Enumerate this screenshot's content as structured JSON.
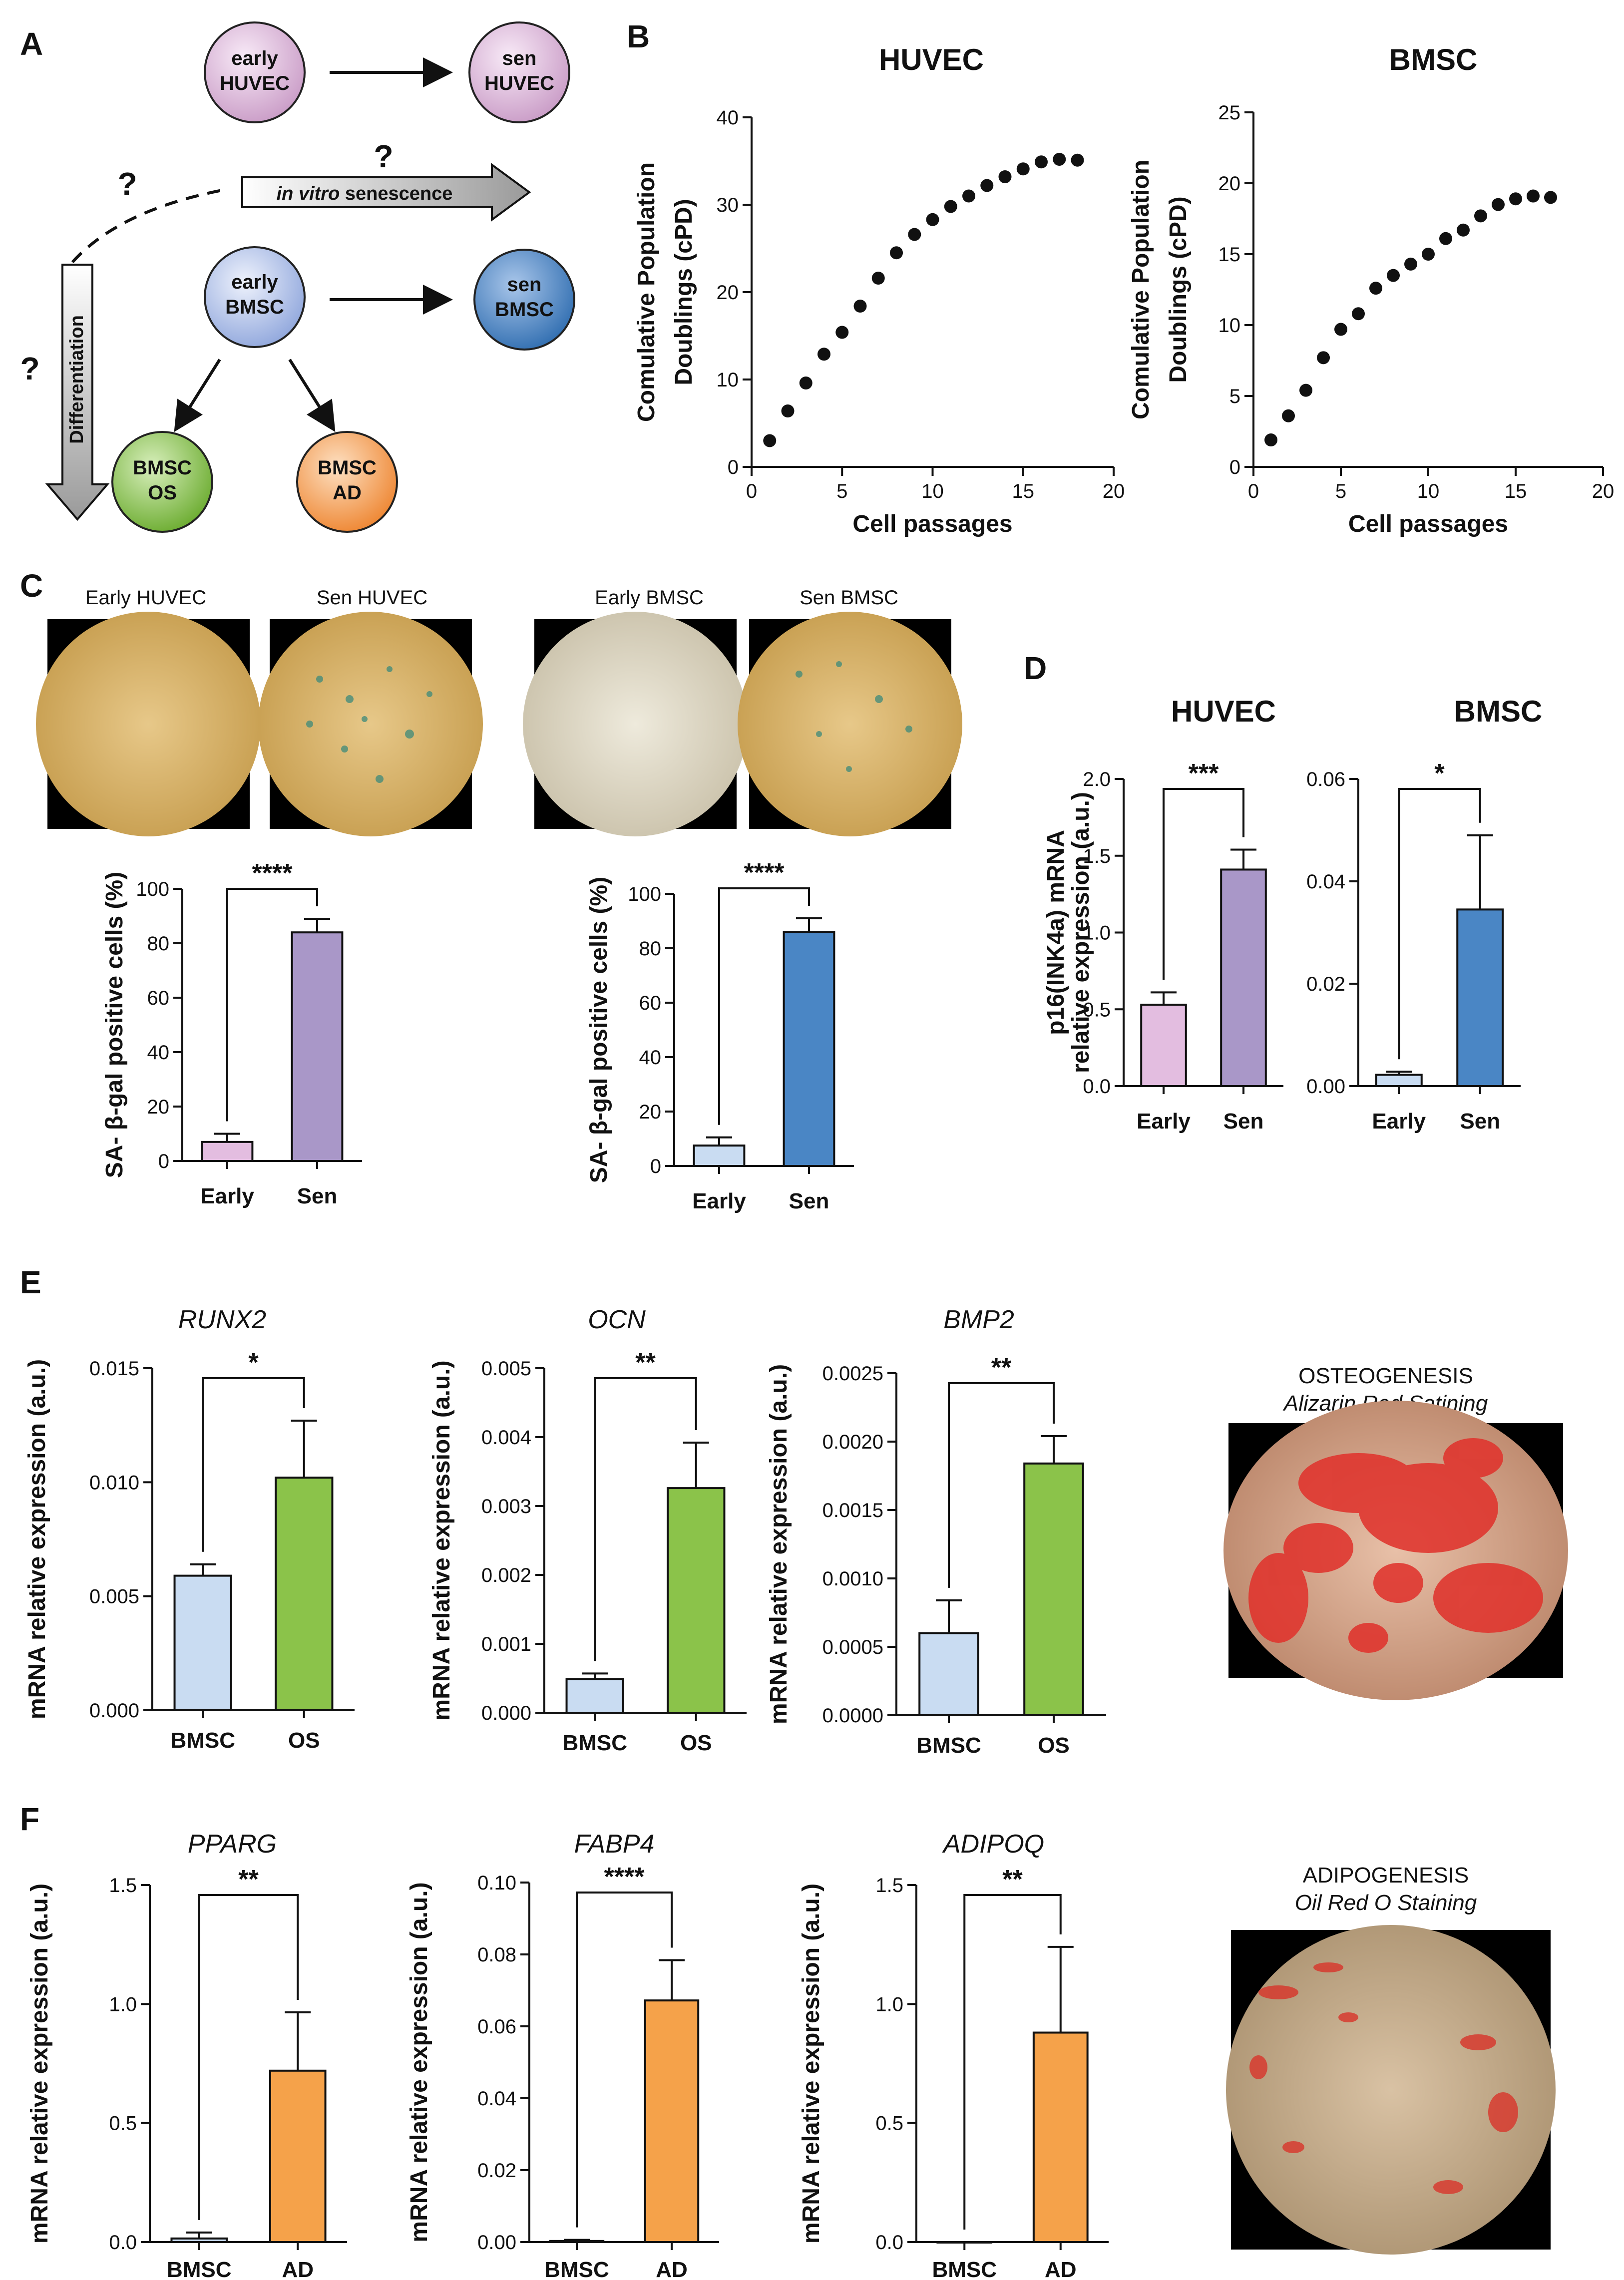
{
  "panels": {
    "A": "A",
    "B": "B",
    "C": "C",
    "D": "D",
    "E": "E",
    "F": "F"
  },
  "diagram": {
    "early_huvec": [
      "early",
      "HUVEC"
    ],
    "sen_huvec": [
      "sen",
      "HUVEC"
    ],
    "early_bmsc": [
      "early",
      "BMSC"
    ],
    "sen_bmsc": [
      "sen",
      "BMSC"
    ],
    "bmsc_os": [
      "BMSC",
      "OS"
    ],
    "bmsc_ad": [
      "BMSC",
      "AD"
    ],
    "q1": "?",
    "q2": "?",
    "q3": "?",
    "senescence_italic": "in vitro",
    "senescence_rest": " senescence",
    "differentiation": "Differentiation",
    "colors": {
      "huvec": "#e3bde0",
      "bmsc_early": "#b9c8ec",
      "bmsc_sen": "#5d8fc9",
      "os": "#8bc34a",
      "ad": "#f5a25d"
    }
  },
  "micrographs": {
    "C": [
      "Early HUVEC",
      "Sen HUVEC",
      "Early BMSC",
      "Sen BMSC"
    ],
    "E": [
      "OSTEOGENESIS",
      "Alizarin Red Satining"
    ],
    "F": [
      "ADIPOGENESIS",
      "Oil Red O Staining"
    ]
  },
  "chart_data": [
    {
      "id": "B1",
      "type": "scatter",
      "title": "HUVEC",
      "xlabel": "Cell passages",
      "ylabel": [
        "Comulative Population",
        "Doublings (cPD)"
      ],
      "xlim": [
        0,
        20
      ],
      "ylim": [
        0,
        40
      ],
      "xticks": [
        0,
        5,
        10,
        15,
        20
      ],
      "yticks": [
        0,
        10,
        20,
        30,
        40
      ],
      "x": [
        1,
        2,
        3,
        4,
        5,
        6,
        7,
        8,
        9,
        10,
        11,
        12,
        13,
        14,
        15,
        16,
        17,
        18
      ],
      "y": [
        3.0,
        6.4,
        9.6,
        12.9,
        15.4,
        18.4,
        21.6,
        24.5,
        26.6,
        28.3,
        29.8,
        31.0,
        32.2,
        33.2,
        34.1,
        34.9,
        35.2,
        35.1
      ],
      "color": "#111111"
    },
    {
      "id": "B2",
      "type": "scatter",
      "title": "BMSC",
      "xlabel": "Cell passages",
      "ylabel": [
        "Comulative Population",
        "Doublings (cPD)"
      ],
      "xlim": [
        0,
        20
      ],
      "ylim": [
        0,
        25
      ],
      "xticks": [
        0,
        5,
        10,
        15,
        20
      ],
      "yticks": [
        0,
        5,
        10,
        15,
        20,
        25
      ],
      "x": [
        1,
        2,
        3,
        4,
        5,
        6,
        7,
        8,
        9,
        10,
        11,
        12,
        13,
        14,
        15,
        16,
        17
      ],
      "y": [
        1.9,
        3.6,
        5.4,
        7.7,
        9.7,
        10.8,
        12.6,
        13.5,
        14.3,
        15.0,
        16.1,
        16.7,
        17.7,
        18.5,
        18.9,
        19.1,
        19.0
      ],
      "color": "#111111"
    },
    {
      "id": "C1",
      "type": "bar",
      "ylabel": "SA- β-gal positive cells (%)",
      "ylim": [
        0,
        100
      ],
      "yticks": [
        0,
        20,
        40,
        60,
        80,
        100
      ],
      "categories": [
        "Early",
        "Sen"
      ],
      "values": [
        7,
        84
      ],
      "errors": [
        3,
        5
      ],
      "colors": [
        "#e3bde0",
        "#a997c8"
      ],
      "significance": "****"
    },
    {
      "id": "C2",
      "type": "bar",
      "ylabel": "SA- β-gal positive cells (%)",
      "ylim": [
        0,
        100
      ],
      "yticks": [
        0,
        20,
        40,
        60,
        80,
        100
      ],
      "categories": [
        "Early",
        "Sen"
      ],
      "values": [
        7.5,
        86
      ],
      "errors": [
        3,
        5
      ],
      "colors": [
        "#c9dcf2",
        "#4a86c5"
      ],
      "significance": "****"
    },
    {
      "id": "D1",
      "type": "bar",
      "title": "HUVEC",
      "ylabel": [
        "p16(INK4a) mRNA",
        "relative expression (a.u.)"
      ],
      "ylim": [
        0,
        2.0
      ],
      "yticks": [
        0,
        0.5,
        1.0,
        1.5,
        2.0
      ],
      "categories": [
        "Early",
        "Sen"
      ],
      "values": [
        0.53,
        1.41
      ],
      "errors": [
        0.08,
        0.13
      ],
      "colors": [
        "#e3bde0",
        "#a997c8"
      ],
      "significance": "***"
    },
    {
      "id": "D2",
      "type": "bar",
      "title": "BMSC",
      "ylabel": "",
      "ylim": [
        0,
        0.06
      ],
      "yticks": [
        0.0,
        0.02,
        0.04,
        0.06
      ],
      "categories": [
        "Early",
        "Sen"
      ],
      "values": [
        0.0022,
        0.0345
      ],
      "errors": [
        0.0006,
        0.0145
      ],
      "colors": [
        "#c9dcf2",
        "#4a86c5"
      ],
      "significance": "*"
    },
    {
      "id": "E1",
      "type": "bar",
      "gene": "RUNX2",
      "ylabel": "mRNA relative expression (a.u.)",
      "ylim": [
        0,
        0.015
      ],
      "yticks": [
        0.0,
        0.005,
        0.01,
        0.015
      ],
      "categories": [
        "BMSC",
        "OS"
      ],
      "values": [
        0.0059,
        0.0102
      ],
      "errors": [
        0.0005,
        0.0025
      ],
      "colors": [
        "#c9dcf2",
        "#8bc34a"
      ],
      "significance": "*"
    },
    {
      "id": "E2",
      "type": "bar",
      "gene": "OCN",
      "ylabel": "mRNA relative expression (a.u.)",
      "ylim": [
        0,
        0.005
      ],
      "yticks": [
        0.0,
        0.001,
        0.002,
        0.003,
        0.004,
        0.005
      ],
      "categories": [
        "BMSC",
        "OS"
      ],
      "values": [
        0.00049,
        0.00326
      ],
      "errors": [
        8e-05,
        0.00066
      ],
      "colors": [
        "#c9dcf2",
        "#8bc34a"
      ],
      "significance": "**"
    },
    {
      "id": "E3",
      "type": "bar",
      "gene": "BMP2",
      "ylabel": "mRNA relative expression (a.u.)",
      "ylim": [
        0,
        0.0025
      ],
      "yticks": [
        0.0,
        0.0005,
        0.001,
        0.0015,
        0.002,
        0.0025
      ],
      "categories": [
        "BMSC",
        "OS"
      ],
      "values": [
        0.0006,
        0.00184
      ],
      "errors": [
        0.00024,
        0.0002
      ],
      "colors": [
        "#c9dcf2",
        "#8bc34a"
      ],
      "significance": "**"
    },
    {
      "id": "F1",
      "type": "bar",
      "gene": "PPARG",
      "ylabel": "mRNA relative expression (a.u.)",
      "ylim": [
        0,
        1.5
      ],
      "yticks": [
        0.0,
        0.5,
        1.0,
        1.5
      ],
      "categories": [
        "BMSC",
        "AD"
      ],
      "values": [
        0.015,
        0.72
      ],
      "errors": [
        0.025,
        0.245
      ],
      "colors": [
        "#c9dcf2",
        "#f5a24a"
      ],
      "significance": "**"
    },
    {
      "id": "F2",
      "type": "bar",
      "gene": "FABP4",
      "ylabel": "mRNA relative expression (a.u.)",
      "ylim": [
        0,
        0.1
      ],
      "yticks": [
        0.0,
        0.02,
        0.04,
        0.06,
        0.08,
        0.1
      ],
      "categories": [
        "BMSC",
        "AD"
      ],
      "values": [
        0.0003,
        0.0672
      ],
      "errors": [
        0.0003,
        0.0112
      ],
      "colors": [
        "#c9dcf2",
        "#f5a24a"
      ],
      "significance": "****"
    },
    {
      "id": "F3",
      "type": "bar",
      "gene": "ADIPOQ",
      "ylabel": "mRNA relative expression (a.u.)",
      "ylim": [
        0,
        1.5
      ],
      "yticks": [
        0.0,
        0.5,
        1.0,
        1.5
      ],
      "categories": [
        "BMSC",
        "AD"
      ],
      "values": [
        0.0,
        0.88
      ],
      "errors": [
        0.0,
        0.36
      ],
      "colors": [
        "#c9dcf2",
        "#f5a24a"
      ],
      "significance": "**"
    }
  ]
}
